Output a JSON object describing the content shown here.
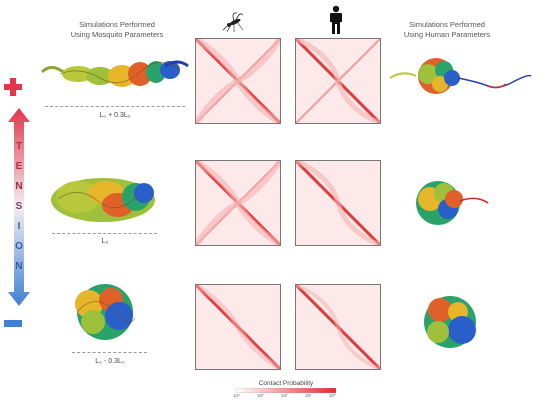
{
  "headers": {
    "left_title": "Simulations Performed\nUsing Mosquito Parameters",
    "right_title": "Simulations Performed\nUsing Human Parameters"
  },
  "icons": {
    "mosquito": "mosquito-icon",
    "human": "human-figure-icon",
    "plus": "plus-icon",
    "minus": "minus-icon"
  },
  "tension": {
    "letters": [
      "T",
      "E",
      "N",
      "S",
      "I",
      "O",
      "N"
    ],
    "top_color": "#e0374a",
    "bottom_color": "#3f7fd6"
  },
  "length_labels": {
    "row1": "L₀ + 0.3L₀",
    "row2": "L₀",
    "row3": "L₀ - 0.3L₀"
  },
  "colorbar": {
    "label": "Contact Probability",
    "ticks": [
      "10⁴",
      "10³",
      "10²",
      "10¹",
      "10⁰"
    ],
    "low_color": "#ffffff",
    "high_color": "#e8282e"
  },
  "colors": {
    "matrix_diagonal": "#e33b3b",
    "matrix_background": "#fde9e9"
  }
}
